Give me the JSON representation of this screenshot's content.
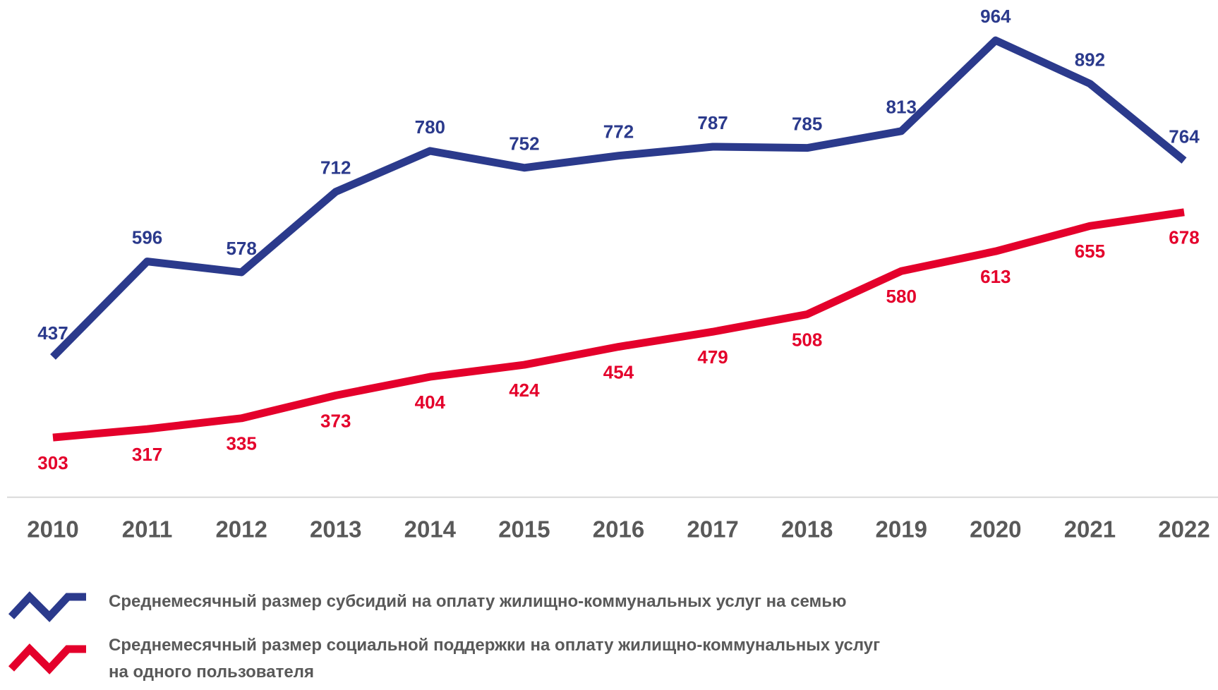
{
  "chart_data": {
    "type": "line",
    "categories": [
      "2010",
      "2011",
      "2012",
      "2013",
      "2014",
      "2015",
      "2016",
      "2017",
      "2018",
      "2019",
      "2020",
      "2021",
      "2022"
    ],
    "series": [
      {
        "name": "Среднемесячный размер субсидий на оплату жилищно-коммунальных услуг на семью",
        "color": "#2b3a8c",
        "values": [
          437,
          596,
          578,
          712,
          780,
          752,
          772,
          787,
          785,
          813,
          964,
          892,
          764
        ]
      },
      {
        "name": "Среднемесячный размер социальной поддержки на оплату жилищно-коммунальных услуг\nна одного пользователя",
        "color": "#e4002b",
        "values": [
          303,
          317,
          335,
          373,
          404,
          424,
          454,
          479,
          508,
          580,
          613,
          655,
          678
        ]
      }
    ],
    "ylim": [
      200,
      1000
    ]
  }
}
